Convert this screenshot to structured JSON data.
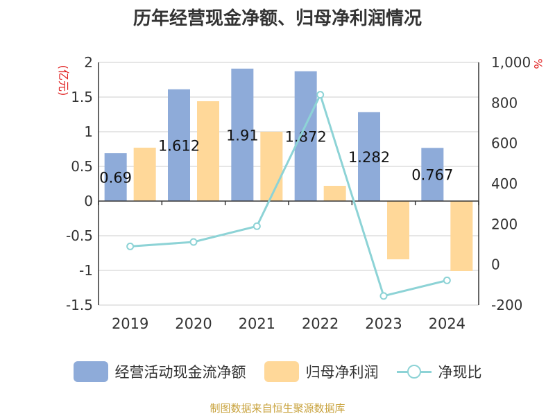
{
  "chart_data": {
    "type": "bar+line",
    "title": "历年经营现金净额、归母净利润情况",
    "categories": [
      "2019",
      "2020",
      "2021",
      "2022",
      "2023",
      "2024"
    ],
    "series": [
      {
        "name": "经营活动现金流净额",
        "axis": "left",
        "type": "bar",
        "color": "#8eabd9",
        "values": [
          0.69,
          1.612,
          1.91,
          1.872,
          1.282,
          0.767
        ],
        "labels": [
          "0.69",
          "1.612",
          "1.91",
          "1.872",
          "1.282",
          "0.767"
        ]
      },
      {
        "name": "归母净利润",
        "axis": "left",
        "type": "bar",
        "color": "#ffd899",
        "values": [
          0.77,
          1.44,
          1.0,
          0.22,
          -0.84,
          -1.01
        ]
      },
      {
        "name": "净现比",
        "axis": "right",
        "type": "line",
        "color": "#8dd3d6",
        "values": [
          90,
          112,
          190,
          840,
          -155,
          -78
        ]
      }
    ],
    "left_axis": {
      "unit": "(亿元)",
      "min": -1.5,
      "max": 2,
      "ticks": [
        2,
        1.5,
        1,
        0.5,
        0,
        -0.5,
        -1,
        -1.5
      ],
      "tick_labels": [
        "2",
        "1.5",
        "1",
        "0.5",
        "0",
        "-0.5",
        "-1",
        "-1.5"
      ]
    },
    "right_axis": {
      "unit": "%",
      "min": -200,
      "max": 1000,
      "ticks": [
        1000,
        800,
        600,
        400,
        200,
        0,
        -200
      ],
      "tick_labels": [
        "1,000",
        "800",
        "600",
        "400",
        "200",
        "0",
        "-200"
      ]
    },
    "source": "制图数据来自恒生聚源数据库"
  }
}
